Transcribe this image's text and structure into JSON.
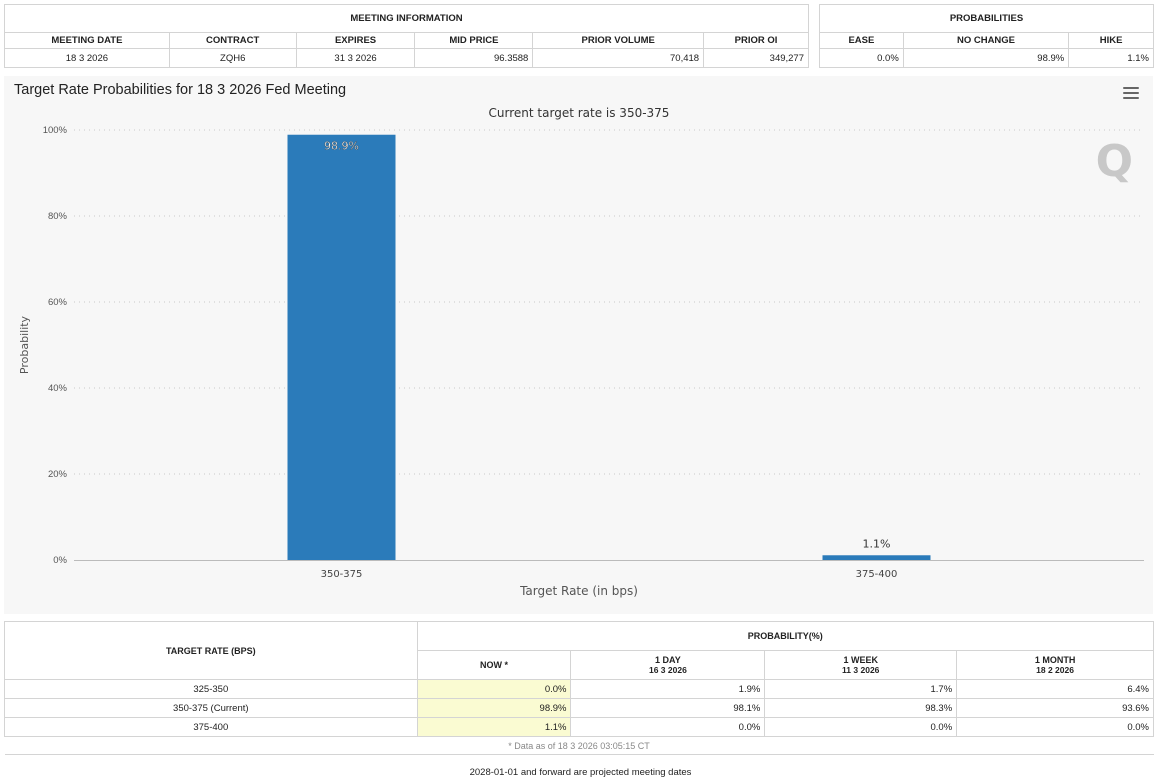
{
  "meeting_info": {
    "title": "MEETING INFORMATION",
    "headers": [
      "MEETING DATE",
      "CONTRACT",
      "EXPIRES",
      "MID PRICE",
      "PRIOR VOLUME",
      "PRIOR OI"
    ],
    "row": [
      "18 3 2026",
      "ZQH6",
      "31 3 2026",
      "96.3588",
      "70,418",
      "349,277"
    ]
  },
  "probabilities": {
    "title": "PROBABILITIES",
    "headers": [
      "EASE",
      "NO CHANGE",
      "HIKE"
    ],
    "row": [
      "0.0%",
      "98.9%",
      "1.1%"
    ]
  },
  "chart": {
    "menu_icon": "hamburger-menu-icon",
    "logo_letter": "Q"
  },
  "chart_data": {
    "type": "bar",
    "title": "Target Rate Probabilities for 18 3 2026 Fed Meeting",
    "subtitle": "Current target rate is 350-375",
    "xlabel": "Target Rate (in bps)",
    "ylabel": "Probability",
    "categories": [
      "350-375",
      "375-400"
    ],
    "values": [
      98.9,
      1.1
    ],
    "data_labels": [
      "98.9%",
      "1.1%"
    ],
    "ylim": [
      0,
      100
    ],
    "yticks": [
      "0%",
      "20%",
      "40%",
      "60%",
      "80%",
      "100%"
    ],
    "bar_color": "#2b7bba",
    "grid": true
  },
  "history": {
    "target_header": "TARGET RATE (BPS)",
    "prob_header": "PROBABILITY(%)",
    "col_now": "NOW *",
    "col_1day": "1 DAY",
    "col_1day_date": "16 3 2026",
    "col_1week": "1 WEEK",
    "col_1week_date": "11 3 2026",
    "col_1month": "1 MONTH",
    "col_1month_date": "18 2 2026",
    "rows": [
      {
        "rate": "325-350",
        "now": "0.0%",
        "d1": "1.9%",
        "w1": "1.7%",
        "m1": "6.4%"
      },
      {
        "rate": "350-375 (Current)",
        "now": "98.9%",
        "d1": "98.1%",
        "w1": "98.3%",
        "m1": "93.6%"
      },
      {
        "rate": "375-400",
        "now": "1.1%",
        "d1": "0.0%",
        "w1": "0.0%",
        "m1": "0.0%"
      }
    ],
    "footnote": "* Data as of 18 3 2026 03:05:15 CT"
  },
  "projected_note": "2028-01-01 and forward are projected meeting dates"
}
